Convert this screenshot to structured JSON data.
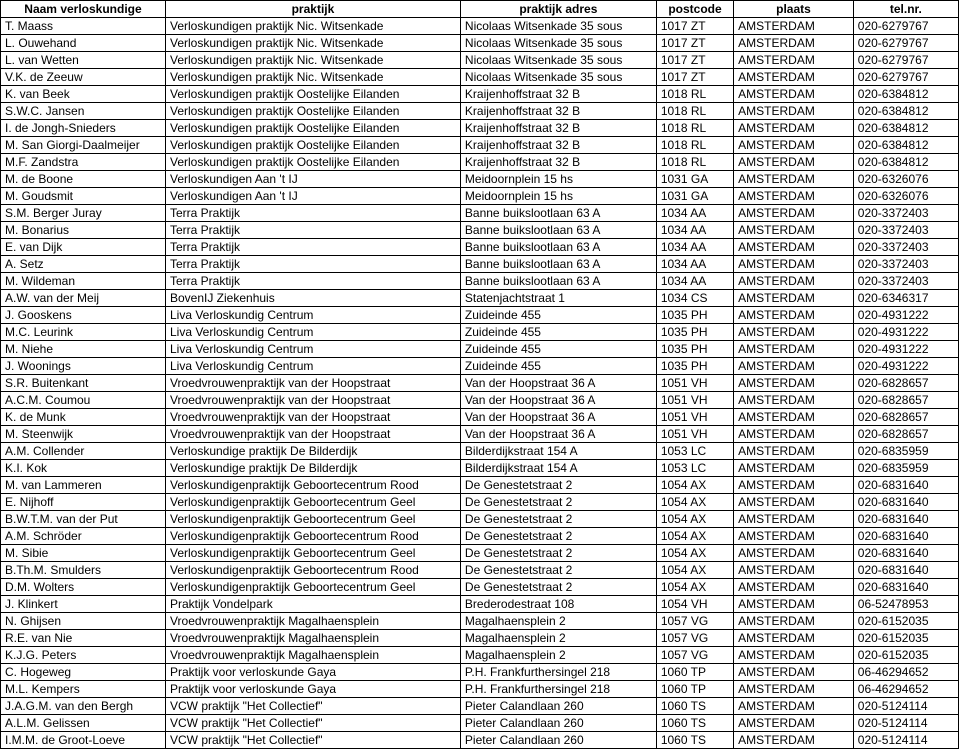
{
  "table": {
    "columns": [
      "Naam verloskundige",
      "praktijk",
      "praktijk adres",
      "postcode",
      "plaats",
      "tel.nr."
    ],
    "rows": [
      [
        "T. Maass",
        "Verloskundigen praktijk Nic. Witsenkade",
        "Nicolaas Witsenkade 35 sous",
        "1017 ZT",
        "AMSTERDAM",
        "020-6279767"
      ],
      [
        "L. Ouwehand",
        "Verloskundigen praktijk Nic. Witsenkade",
        "Nicolaas Witsenkade 35 sous",
        "1017 ZT",
        "AMSTERDAM",
        "020-6279767"
      ],
      [
        "L. van Wetten",
        "Verloskundigen praktijk Nic. Witsenkade",
        "Nicolaas Witsenkade 35 sous",
        "1017 ZT",
        "AMSTERDAM",
        "020-6279767"
      ],
      [
        "V.K. de Zeeuw",
        "Verloskundigen praktijk Nic. Witsenkade",
        "Nicolaas Witsenkade 35 sous",
        "1017 ZT",
        "AMSTERDAM",
        "020-6279767"
      ],
      [
        "K. van Beek",
        "Verloskundigen praktijk Oostelijke Eilanden",
        "Kraijenhoffstraat 32 B",
        "1018 RL",
        "AMSTERDAM",
        "020-6384812"
      ],
      [
        "S.W.C. Jansen",
        "Verloskundigen praktijk Oostelijke Eilanden",
        "Kraijenhoffstraat 32 B",
        "1018 RL",
        "AMSTERDAM",
        "020-6384812"
      ],
      [
        "I. de Jongh-Snieders",
        "Verloskundigen praktijk Oostelijke Eilanden",
        "Kraijenhoffstraat 32 B",
        "1018 RL",
        "AMSTERDAM",
        "020-6384812"
      ],
      [
        "M. San Giorgi-Daalmeijer",
        "Verloskundigen praktijk Oostelijke Eilanden",
        "Kraijenhoffstraat 32 B",
        "1018 RL",
        "AMSTERDAM",
        "020-6384812"
      ],
      [
        "M.F. Zandstra",
        "Verloskundigen praktijk Oostelijke Eilanden",
        "Kraijenhoffstraat 32 B",
        "1018 RL",
        "AMSTERDAM",
        "020-6384812"
      ],
      [
        "M. de Boone",
        "Verloskundigen Aan 't IJ",
        "Meidoornplein 15 hs",
        "1031 GA",
        "AMSTERDAM",
        "020-6326076"
      ],
      [
        "M. Goudsmit",
        "Verloskundigen Aan 't IJ",
        "Meidoornplein 15 hs",
        "1031 GA",
        "AMSTERDAM",
        "020-6326076"
      ],
      [
        "S.M. Berger Juray",
        "Terra Praktijk",
        "Banne buikslootlaan 63 A",
        "1034 AA",
        "AMSTERDAM",
        "020-3372403"
      ],
      [
        "M. Bonarius",
        "Terra Praktijk",
        "Banne buikslootlaan 63 A",
        "1034 AA",
        "AMSTERDAM",
        "020-3372403"
      ],
      [
        "E. van Dijk",
        "Terra Praktijk",
        "Banne buikslootlaan 63 A",
        "1034 AA",
        "AMSTERDAM",
        "020-3372403"
      ],
      [
        "A. Setz",
        "Terra Praktijk",
        "Banne buikslootlaan 63 A",
        "1034 AA",
        "AMSTERDAM",
        "020-3372403"
      ],
      [
        "M. Wildeman",
        "Terra Praktijk",
        "Banne buikslootlaan 63 A",
        "1034 AA",
        "AMSTERDAM",
        "020-3372403"
      ],
      [
        "A.W. van der Meij",
        "BovenIJ Ziekenhuis",
        "Statenjachtstraat 1",
        "1034 CS",
        "AMSTERDAM",
        "020-6346317"
      ],
      [
        "J. Gooskens",
        "Liva Verloskundig Centrum",
        "Zuideinde 455",
        "1035 PH",
        "AMSTERDAM",
        "020-4931222"
      ],
      [
        "M.C. Leurink",
        "Liva Verloskundig Centrum",
        "Zuideinde 455",
        "1035 PH",
        "AMSTERDAM",
        "020-4931222"
      ],
      [
        "M. Niehe",
        "Liva Verloskundig Centrum",
        "Zuideinde 455",
        "1035 PH",
        "AMSTERDAM",
        "020-4931222"
      ],
      [
        "J. Woonings",
        "Liva Verloskundig Centrum",
        "Zuideinde 455",
        "1035 PH",
        "AMSTERDAM",
        "020-4931222"
      ],
      [
        "S.R. Buitenkant",
        "Vroedvrouwenpraktijk van der Hoopstraat",
        "Van der Hoopstraat 36 A",
        "1051 VH",
        "AMSTERDAM",
        "020-6828657"
      ],
      [
        "A.C.M. Coumou",
        "Vroedvrouwenpraktijk van der Hoopstraat",
        "Van der Hoopstraat 36 A",
        "1051 VH",
        "AMSTERDAM",
        "020-6828657"
      ],
      [
        "K. de Munk",
        "Vroedvrouwenpraktijk van der Hoopstraat",
        "Van der Hoopstraat 36 A",
        "1051 VH",
        "AMSTERDAM",
        "020-6828657"
      ],
      [
        "M. Steenwijk",
        "Vroedvrouwenpraktijk van der Hoopstraat",
        "Van der Hoopstraat 36 A",
        "1051 VH",
        "AMSTERDAM",
        "020-6828657"
      ],
      [
        "A.M. Collender",
        "Verloskundige praktijk De Bilderdijk",
        "Bilderdijkstraat 154 A",
        "1053 LC",
        "AMSTERDAM",
        "020-6835959"
      ],
      [
        "K.I. Kok",
        "Verloskundige praktijk De Bilderdijk",
        "Bilderdijkstraat 154 A",
        "1053 LC",
        "AMSTERDAM",
        "020-6835959"
      ],
      [
        "M. van Lammeren",
        "Verloskundigenpraktijk Geboortecentrum Rood",
        "De Genestetstraat 2",
        "1054 AX",
        "AMSTERDAM",
        "020-6831640"
      ],
      [
        "E. Nijhoff",
        "Verloskundigenpraktijk Geboortecentrum Geel",
        "De Genestetstraat 2",
        "1054 AX",
        "AMSTERDAM",
        "020-6831640"
      ],
      [
        "B.W.T.M. van der Put",
        "Verloskundigenpraktijk Geboortecentrum Geel",
        "De Genestetstraat 2",
        "1054 AX",
        "AMSTERDAM",
        "020-6831640"
      ],
      [
        "A.M. Schröder",
        "Verloskundigenpraktijk Geboortecentrum Rood",
        "De Genestetstraat 2",
        "1054 AX",
        "AMSTERDAM",
        "020-6831640"
      ],
      [
        "M. Sibie",
        "Verloskundigenpraktijk Geboortecentrum Geel",
        "De Genestetstraat 2",
        "1054 AX",
        "AMSTERDAM",
        "020-6831640"
      ],
      [
        "B.Th.M. Smulders",
        "Verloskundigenpraktijk Geboortecentrum Rood",
        "De Genestetstraat 2",
        "1054 AX",
        "AMSTERDAM",
        "020-6831640"
      ],
      [
        "D.M. Wolters",
        "Verloskundigenpraktijk Geboortecentrum Geel",
        "De Genestetstraat 2",
        "1054 AX",
        "AMSTERDAM",
        "020-6831640"
      ],
      [
        "J. Klinkert",
        "Praktijk Vondelpark",
        "Brederodestraat 108",
        "1054 VH",
        "AMSTERDAM",
        "06-52478953"
      ],
      [
        "N. Ghijsen",
        "Vroedvrouwenpraktijk Magalhaensplein",
        "Magalhaensplein 2",
        "1057 VG",
        "AMSTERDAM",
        "020-6152035"
      ],
      [
        "R.E. van Nie",
        "Vroedvrouwenpraktijk Magalhaensplein",
        "Magalhaensplein 2",
        "1057 VG",
        "AMSTERDAM",
        "020-6152035"
      ],
      [
        "K.J.G. Peters",
        "Vroedvrouwenpraktijk Magalhaensplein",
        "Magalhaensplein 2",
        "1057 VG",
        "AMSTERDAM",
        "020-6152035"
      ],
      [
        "C. Hogeweg",
        "Praktijk voor verloskunde Gaya",
        "P.H. Frankfurthersingel 218",
        "1060 TP",
        "AMSTERDAM",
        "06-46294652"
      ],
      [
        "M.L. Kempers",
        "Praktijk voor verloskunde Gaya",
        "P.H. Frankfurthersingel 218",
        "1060 TP",
        "AMSTERDAM",
        "06-46294652"
      ],
      [
        "J.A.G.M. van den Bergh",
        "VCW praktijk \"Het Collectief\"",
        "Pieter Calandlaan 260",
        "1060 TS",
        "AMSTERDAM",
        "020-5124114"
      ],
      [
        "A.L.M. Gelissen",
        "VCW praktijk \"Het Collectief\"",
        "Pieter Calandlaan 260",
        "1060 TS",
        "AMSTERDAM",
        "020-5124114"
      ],
      [
        "I.M.M. de Groot-Loeve",
        "VCW praktijk \"Het Collectief\"",
        "Pieter Calandlaan 260",
        "1060 TS",
        "AMSTERDAM",
        "020-5124114"
      ]
    ]
  }
}
